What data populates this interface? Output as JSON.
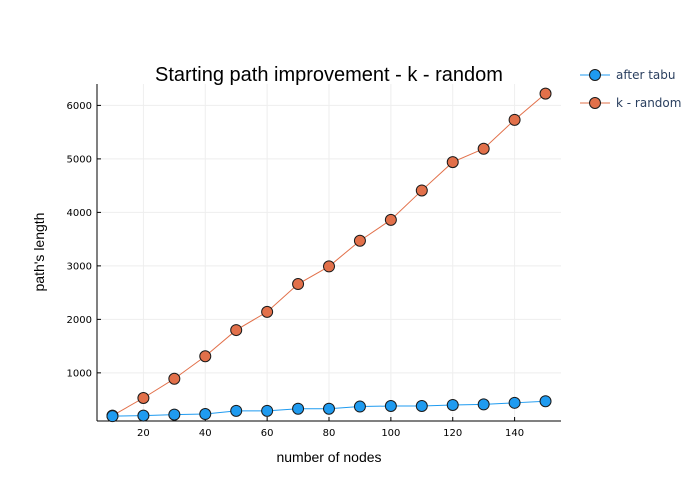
{
  "chart_data": {
    "type": "line",
    "title": "Starting path improvement - k - random",
    "xlabel": "number of nodes",
    "ylabel": "path's length",
    "xlim": [
      5,
      155
    ],
    "ylim": [
      100,
      6400
    ],
    "x_ticks": [
      20,
      40,
      60,
      80,
      100,
      120,
      140
    ],
    "y_ticks": [
      1000,
      2000,
      3000,
      4000,
      5000,
      6000
    ],
    "grid": true,
    "legend_position": "top-right, outside plot",
    "x": [
      10,
      20,
      30,
      40,
      50,
      60,
      70,
      80,
      90,
      100,
      110,
      120,
      130,
      140,
      150
    ],
    "series": [
      {
        "name": "after tabu",
        "color": "#1f9bf0",
        "values": [
          190,
          200,
          220,
          230,
          290,
          290,
          330,
          330,
          370,
          380,
          380,
          400,
          410,
          440,
          470
        ]
      },
      {
        "name": "k - random",
        "color": "#e2704a",
        "values": [
          200,
          530,
          890,
          1310,
          1800,
          2140,
          2660,
          2990,
          3470,
          3860,
          4410,
          4940,
          5190,
          5730,
          6220
        ]
      }
    ]
  }
}
